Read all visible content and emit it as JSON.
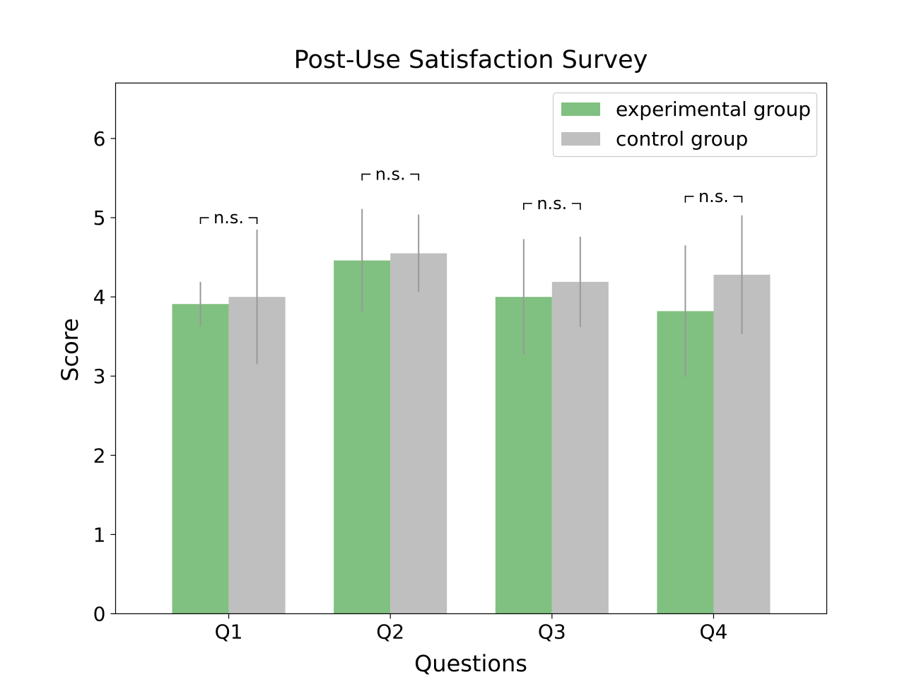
{
  "chart_data": {
    "type": "bar",
    "title": "Post-Use Satisfaction Survey",
    "xlabel": "Questions",
    "ylabel": "Score",
    "categories": [
      "Q1",
      "Q2",
      "Q3",
      "Q4"
    ],
    "ylim": [
      0,
      6.7
    ],
    "yticks": [
      0,
      1,
      2,
      3,
      4,
      5,
      6
    ],
    "series": [
      {
        "name": "experimental group",
        "color": "#80c080",
        "values": [
          3.91,
          4.46,
          4.0,
          3.82
        ],
        "errors": [
          0.28,
          0.65,
          0.73,
          0.83
        ]
      },
      {
        "name": "control group",
        "color": "#bfbfbf",
        "values": [
          4.0,
          4.55,
          4.19,
          4.28
        ],
        "errors": [
          0.85,
          0.49,
          0.57,
          0.75
        ]
      }
    ],
    "error_bar_color": "#999999",
    "significance": [
      {
        "category": "Q1",
        "label": "n.s.",
        "level": 5.0
      },
      {
        "category": "Q2",
        "label": "n.s.",
        "level": 5.55
      },
      {
        "category": "Q3",
        "label": "n.s.",
        "level": 5.18
      },
      {
        "category": "Q4",
        "label": "n.s.",
        "level": 5.27
      }
    ],
    "legend_position": "top-right",
    "grid": false
  }
}
